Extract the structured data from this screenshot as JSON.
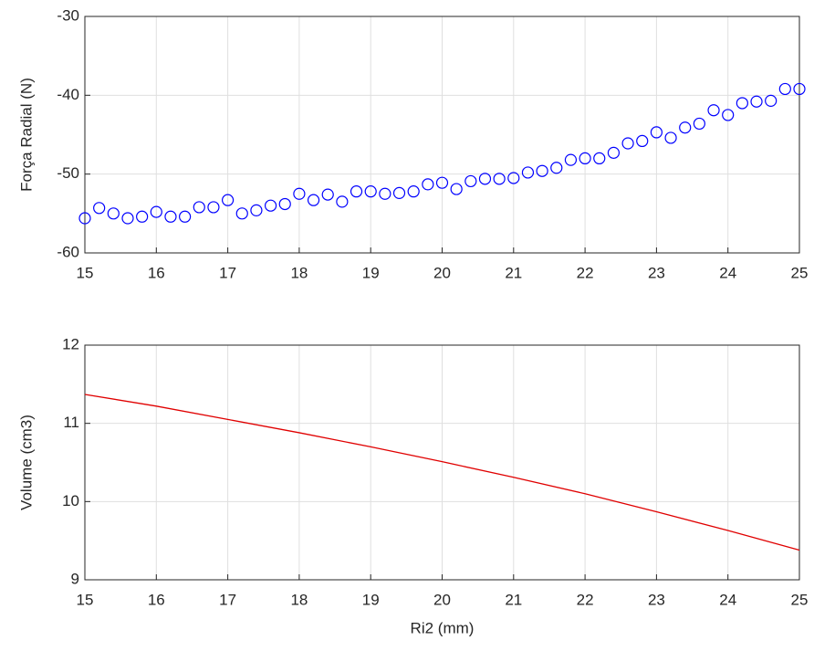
{
  "chart_data": [
    {
      "type": "scatter",
      "ylabel": "Força Radial (N)",
      "series": [
        {
          "color": "#0000ff",
          "x": [
            15,
            15.2,
            15.4,
            15.6,
            15.8,
            16,
            16.2,
            16.4,
            16.6,
            16.8,
            17,
            17.2,
            17.4,
            17.6,
            17.8,
            18,
            18.2,
            18.4,
            18.6,
            18.8,
            19,
            19.2,
            19.4,
            19.6,
            19.8,
            20,
            20.2,
            20.4,
            20.6,
            20.8,
            21,
            21.2,
            21.4,
            21.6,
            21.8,
            22,
            22.2,
            22.4,
            22.6,
            22.8,
            23,
            23.2,
            23.4,
            23.6,
            23.8,
            24,
            24.2,
            24.4,
            24.6,
            24.8,
            25
          ],
          "values": [
            -55.6,
            -54.3,
            -55.0,
            -55.6,
            -55.4,
            -54.8,
            -55.4,
            -55.4,
            -54.2,
            -54.2,
            -53.3,
            -55.0,
            -54.6,
            -54.0,
            -53.8,
            -52.5,
            -53.3,
            -52.6,
            -53.5,
            -52.2,
            -52.2,
            -52.5,
            -52.4,
            -52.2,
            -51.3,
            -51.1,
            -51.9,
            -50.9,
            -50.6,
            -50.6,
            -50.5,
            -49.8,
            -49.6,
            -49.2,
            -48.2,
            -48.0,
            -48.0,
            -47.3,
            -46.1,
            -45.8,
            -44.7,
            -45.4,
            -44.1,
            -43.6,
            -41.9,
            -42.5,
            -41.0,
            -40.8,
            -40.7,
            -39.2,
            -39.2
          ]
        }
      ],
      "xlim": [
        15,
        25
      ],
      "xticks": [
        15,
        16,
        17,
        18,
        19,
        20,
        21,
        22,
        23,
        24,
        25
      ],
      "ylim": [
        -60,
        -30
      ],
      "yticks": [
        -60,
        -50,
        -40,
        -30
      ],
      "grid": true
    },
    {
      "type": "line",
      "xlabel": "Ri2 (mm)",
      "ylabel": "Volume (cm3)",
      "series": [
        {
          "color": "#e00000",
          "x": [
            15,
            16,
            17,
            18,
            19,
            20,
            21,
            22,
            23,
            24,
            25
          ],
          "values": [
            11.37,
            11.22,
            11.05,
            10.88,
            10.7,
            10.51,
            10.31,
            10.1,
            9.87,
            9.63,
            9.38
          ]
        }
      ],
      "xlim": [
        15,
        25
      ],
      "xticks": [
        15,
        16,
        17,
        18,
        19,
        20,
        21,
        22,
        23,
        24,
        25
      ],
      "ylim": [
        9,
        12
      ],
      "yticks": [
        9,
        10,
        11,
        12
      ],
      "grid": true
    }
  ]
}
